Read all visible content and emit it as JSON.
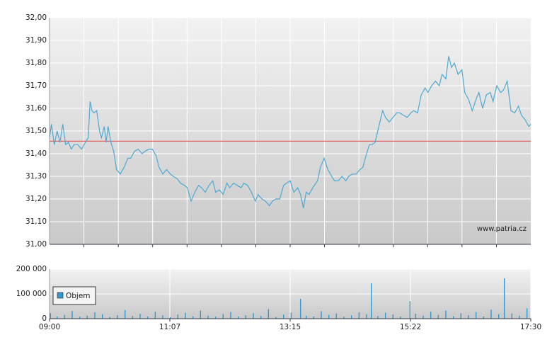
{
  "chart_data": [
    {
      "type": "line",
      "xlim": [
        540,
        1050
      ],
      "x_gridlines": [
        576.4,
        612.9,
        649.3,
        685.7,
        722.1,
        758.6,
        795,
        831.4,
        867.9,
        904.3,
        940.7,
        977.1,
        1013.6
      ],
      "ylim": [
        31,
        32
      ],
      "yticks": [
        {
          "value": 31,
          "label": "31,00"
        },
        {
          "value": 31.1,
          "label": "31,10"
        },
        {
          "value": 31.2,
          "label": "31,20"
        },
        {
          "value": 31.3,
          "label": "31,30"
        },
        {
          "value": 31.4,
          "label": "31,40"
        },
        {
          "value": 31.5,
          "label": "31,50"
        },
        {
          "value": 31.6,
          "label": "31,60"
        },
        {
          "value": 31.7,
          "label": "31,70"
        },
        {
          "value": 31.8,
          "label": "31,80"
        },
        {
          "value": 31.9,
          "label": "31,90"
        },
        {
          "value": 32,
          "label": "32,00"
        }
      ],
      "grid": true,
      "reference_line": {
        "value": 31.455,
        "color": "#e06060"
      },
      "annotation": "www.patria.cz",
      "series": [
        {
          "color": "#4ea8d2",
          "x": [
            540,
            542,
            545,
            548,
            551,
            554,
            557,
            560,
            563,
            566,
            570,
            574,
            578,
            581,
            583,
            585,
            587,
            590,
            593,
            595,
            598,
            600,
            602,
            605,
            608,
            611,
            615,
            619,
            623,
            626,
            630,
            634,
            638,
            641,
            645,
            649,
            653,
            656,
            660,
            664,
            668,
            671,
            675,
            679,
            683,
            686,
            690,
            694,
            698,
            701,
            705,
            709,
            713,
            716,
            720,
            724,
            728,
            731,
            735,
            739,
            743,
            746,
            750,
            754,
            758,
            761,
            765,
            769,
            773,
            776,
            780,
            784,
            788,
            791,
            795,
            799,
            803,
            806,
            809,
            812,
            815,
            819,
            824,
            827,
            831,
            835,
            839,
            842,
            846,
            850,
            854,
            857,
            861,
            865,
            869,
            872,
            876,
            879,
            882,
            885,
            889,
            893,
            896,
            900,
            904,
            908,
            911,
            915,
            919,
            923,
            926,
            930,
            934,
            938,
            941,
            945,
            949,
            953,
            956,
            960,
            963,
            966,
            969,
            973,
            977,
            980,
            984,
            988,
            992,
            995,
            999,
            1003,
            1007,
            1010,
            1014,
            1018,
            1021,
            1025,
            1029,
            1033,
            1037,
            1040,
            1044,
            1048,
            1050
          ],
          "values": [
            31.47,
            31.53,
            31.44,
            31.5,
            31.45,
            31.53,
            31.44,
            31.45,
            31.42,
            31.44,
            31.44,
            31.42,
            31.45,
            31.47,
            31.63,
            31.59,
            31.58,
            31.59,
            31.5,
            31.47,
            31.52,
            31.45,
            31.52,
            31.45,
            31.41,
            31.33,
            31.31,
            31.34,
            31.38,
            31.38,
            31.41,
            31.42,
            31.4,
            31.41,
            31.42,
            31.42,
            31.39,
            31.34,
            31.31,
            31.33,
            31.31,
            31.3,
            31.29,
            31.27,
            31.26,
            31.25,
            31.19,
            31.23,
            31.26,
            31.25,
            31.23,
            31.26,
            31.28,
            31.23,
            31.24,
            31.22,
            31.27,
            31.25,
            31.27,
            31.26,
            31.25,
            31.27,
            31.26,
            31.23,
            31.19,
            31.22,
            31.2,
            31.19,
            31.17,
            31.19,
            31.2,
            31.2,
            31.26,
            31.27,
            31.28,
            31.23,
            31.25,
            31.22,
            31.16,
            31.23,
            31.22,
            31.25,
            31.28,
            31.34,
            31.38,
            31.33,
            31.3,
            31.28,
            31.28,
            31.3,
            31.28,
            31.3,
            31.31,
            31.31,
            31.33,
            31.34,
            31.4,
            31.44,
            31.44,
            31.45,
            31.52,
            31.59,
            31.56,
            31.54,
            31.56,
            31.58,
            31.58,
            31.57,
            31.56,
            31.58,
            31.59,
            31.58,
            31.66,
            31.69,
            31.67,
            31.7,
            31.72,
            31.7,
            31.75,
            31.73,
            31.83,
            31.78,
            31.8,
            31.75,
            31.77,
            31.67,
            31.64,
            31.59,
            31.64,
            31.67,
            31.6,
            31.66,
            31.67,
            31.63,
            31.7,
            31.67,
            31.68,
            31.72,
            31.59,
            31.58,
            31.61,
            31.57,
            31.55,
            31.52,
            31.53
          ]
        }
      ]
    },
    {
      "type": "bar",
      "xlim": [
        540,
        1050
      ],
      "xticks": [
        {
          "value": 540,
          "label": "09:00"
        },
        {
          "value": 667.5,
          "label": "11:07"
        },
        {
          "value": 795,
          "label": "13:15"
        },
        {
          "value": 922.5,
          "label": "15:22"
        },
        {
          "value": 1050,
          "label": "17:30"
        }
      ],
      "ylim": [
        0,
        200000
      ],
      "yticks": [
        0,
        {
          "value": 100000,
          "label": "100 000"
        },
        {
          "value": 200000,
          "label": "200 000"
        }
      ],
      "grid": true,
      "legend": "upper left",
      "series": [
        {
          "name": "Objem",
          "color": "#3399cc",
          "x": [
            541,
            548,
            556,
            564,
            572,
            580,
            588,
            596,
            604,
            612,
            620,
            628,
            636,
            644,
            652,
            660,
            668,
            676,
            684,
            692,
            700,
            708,
            716,
            724,
            732,
            740,
            748,
            756,
            764,
            772,
            780,
            788,
            796,
            806,
            812,
            820,
            828,
            836,
            844,
            852,
            860,
            868,
            876,
            881,
            888,
            896,
            904,
            912,
            922,
            928,
            936,
            944,
            952,
            960,
            968,
            976,
            984,
            992,
            1000,
            1008,
            1016,
            1022,
            1030,
            1038,
            1046
          ],
          "values": [
            22000,
            9000,
            15000,
            31000,
            8000,
            12000,
            26000,
            18000,
            7000,
            14000,
            35000,
            11000,
            20000,
            9000,
            28000,
            13000,
            6000,
            17000,
            24000,
            10000,
            33000,
            12000,
            8000,
            19000,
            27000,
            9000,
            14000,
            22000,
            11000,
            38000,
            7000,
            16000,
            25000,
            80000,
            12000,
            9000,
            30000,
            15000,
            21000,
            8000,
            13000,
            26000,
            18000,
            143000,
            11000,
            24000,
            17000,
            9000,
            71000,
            20000,
            12000,
            28000,
            15000,
            33000,
            10000,
            22000,
            14000,
            27000,
            9000,
            36000,
            18000,
            163000,
            21000,
            12000,
            42000
          ]
        }
      ]
    }
  ]
}
